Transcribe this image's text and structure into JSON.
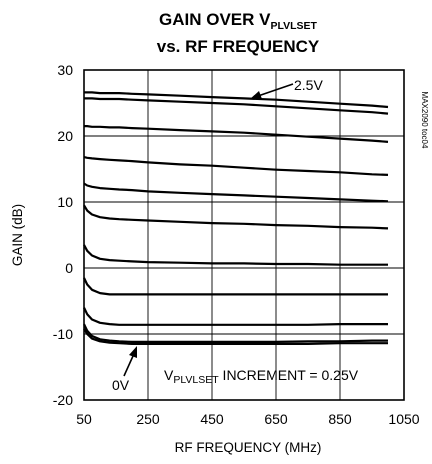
{
  "chart_data": {
    "type": "line",
    "title_line1_prefix": "GAIN OVER V",
    "title_line1_sub": "PLVLSET",
    "title_line2": "vs. RF FREQUENCY",
    "xlabel": "RF FREQUENCY (MHz)",
    "ylabel": "GAIN (dB)",
    "xlim": [
      50,
      1050
    ],
    "ylim": [
      -20,
      30
    ],
    "xticks": [
      "50",
      "250",
      "450",
      "650",
      "850",
      "1050"
    ],
    "yticks": [
      "-20",
      "-10",
      "0",
      "10",
      "20",
      "30"
    ],
    "grid": true,
    "side_tag": "MAX2090 toc04",
    "annotations": {
      "top_curve": "2.5V",
      "bottom_curve": "0V",
      "increment_prefix": "V",
      "increment_sub": "PLVLSET",
      "increment_suffix": " INCREMENT = 0.25V"
    },
    "x": [
      50,
      60,
      75,
      100,
      130,
      160,
      200,
      250,
      350,
      450,
      550,
      650,
      750,
      850,
      950,
      1000
    ],
    "series": [
      {
        "values": [
          -9.2,
          -10.0,
          -10.7,
          -11.1,
          -11.3,
          -11.4,
          -11.5,
          -11.5,
          -11.5,
          -11.5,
          -11.5,
          -11.5,
          -11.5,
          -11.4,
          -11.4,
          -11.4
        ]
      },
      {
        "values": [
          -8.5,
          -9.5,
          -10.3,
          -10.8,
          -11.0,
          -11.1,
          -11.2,
          -11.2,
          -11.2,
          -11.2,
          -11.2,
          -11.2,
          -11.1,
          -11.1,
          -11.0,
          -11.0
        ]
      },
      {
        "values": [
          -6.0,
          -7.0,
          -7.8,
          -8.3,
          -8.5,
          -8.6,
          -8.6,
          -8.6,
          -8.6,
          -8.6,
          -8.6,
          -8.6,
          -8.6,
          -8.5,
          -8.5,
          -8.5
        ]
      },
      {
        "values": [
          -1.5,
          -2.5,
          -3.3,
          -3.8,
          -4.0,
          -4.0,
          -4.0,
          -4.0,
          -4.0,
          -4.0,
          -4.0,
          -4.0,
          -4.0,
          -4.0,
          -4.0,
          -4.0
        ]
      },
      {
        "values": [
          3.5,
          2.6,
          1.9,
          1.4,
          1.2,
          1.1,
          1.0,
          0.9,
          0.8,
          0.7,
          0.7,
          0.6,
          0.6,
          0.5,
          0.5,
          0.5
        ]
      },
      {
        "values": [
          9.5,
          8.7,
          8.1,
          7.7,
          7.5,
          7.4,
          7.3,
          7.2,
          7.0,
          6.8,
          6.7,
          6.5,
          6.4,
          6.2,
          6.1,
          6.0
        ]
      },
      {
        "values": [
          12.8,
          12.5,
          12.3,
          12.1,
          12.0,
          11.9,
          11.8,
          11.6,
          11.4,
          11.2,
          11.0,
          10.8,
          10.6,
          10.4,
          10.2,
          10.1
        ]
      },
      {
        "values": [
          16.8,
          16.7,
          16.6,
          16.5,
          16.4,
          16.3,
          16.2,
          16.0,
          15.7,
          15.5,
          15.2,
          14.9,
          14.7,
          14.5,
          14.2,
          14.1
        ]
      },
      {
        "values": [
          21.5,
          21.5,
          21.4,
          21.4,
          21.3,
          21.3,
          21.2,
          21.1,
          20.9,
          20.7,
          20.5,
          20.2,
          19.9,
          19.6,
          19.3,
          19.1
        ]
      },
      {
        "values": [
          25.7,
          25.7,
          25.7,
          25.6,
          25.6,
          25.6,
          25.5,
          25.4,
          25.2,
          25.0,
          24.8,
          24.5,
          24.2,
          23.9,
          23.6,
          23.4
        ]
      },
      {
        "values": [
          26.6,
          26.6,
          26.6,
          26.5,
          26.5,
          26.5,
          26.4,
          26.3,
          26.1,
          25.9,
          25.7,
          25.5,
          25.2,
          24.9,
          24.6,
          24.4
        ]
      }
    ]
  }
}
